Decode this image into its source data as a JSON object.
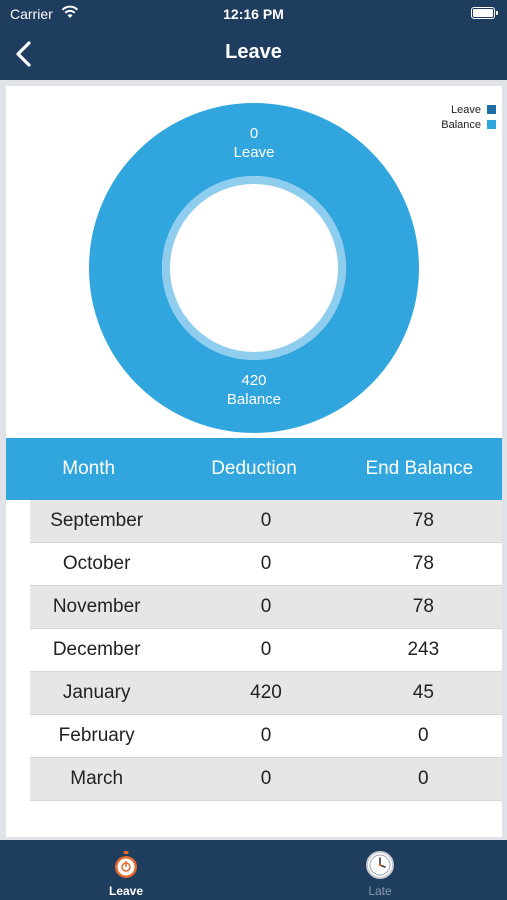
{
  "status_bar": {
    "carrier": "Carrier",
    "time": "12:16 PM",
    "icons": [
      "wifi-icon",
      "battery-icon"
    ]
  },
  "nav": {
    "title": "Leave",
    "back_icon": "chevron-left-icon"
  },
  "colors": {
    "header": "#1f3d5f",
    "accent": "#31a5dd",
    "leave": "#1f6fa6",
    "balance": "#31a5dd"
  },
  "chart_data": {
    "type": "pie",
    "legend_position": "top-right",
    "series": [
      {
        "name": "Leave",
        "value": 0,
        "label_value": "0",
        "label_name": "Leave",
        "color": "#1f6fa6"
      },
      {
        "name": "Balance",
        "value": 420,
        "label_value": "420",
        "label_name": "Balance",
        "color": "#31a5dd"
      }
    ]
  },
  "table": {
    "headers": [
      "Month",
      "Deduction",
      "End Balance"
    ],
    "rows": [
      [
        "September",
        "0",
        "78"
      ],
      [
        "October",
        "0",
        "78"
      ],
      [
        "November",
        "0",
        "78"
      ],
      [
        "December",
        "0",
        "243"
      ],
      [
        "January",
        "420",
        "45"
      ],
      [
        "February",
        "0",
        "0"
      ],
      [
        "March",
        "0",
        "0"
      ]
    ]
  },
  "tabs": [
    {
      "label": "Leave",
      "icon": "stopwatch-icon",
      "active": true
    },
    {
      "label": "Late",
      "icon": "clock-icon",
      "active": false
    }
  ]
}
